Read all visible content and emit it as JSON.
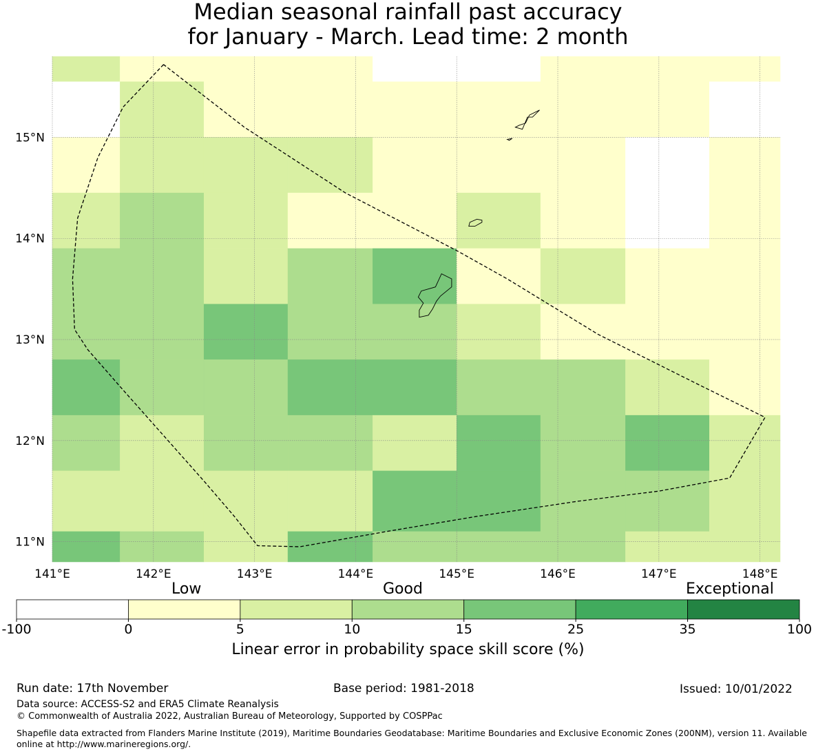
{
  "title_line1": "Median seasonal rainfall past accuracy",
  "title_line2": "for January - March. Lead time: 2 month",
  "map": {
    "lon_range": [
      141.0,
      148.2
    ],
    "lat_range": [
      10.8,
      15.8
    ],
    "x_ticks": [
      "141°E",
      "142°E",
      "143°E",
      "144°E",
      "145°E",
      "146°E",
      "147°E",
      "148°E"
    ],
    "y_ticks": [
      "15°N",
      "14°N",
      "13°N",
      "12°N",
      "11°N"
    ],
    "grid_note": "skill category index per cell: -1=no data, 0:-100..0, 1:0..5, 2:5..10, 3:10..15, 4:15..25",
    "cells": [
      {
        "lon": [
          141.0,
          141.67
        ],
        "lat": [
          15.55,
          15.8
        ],
        "cat": 2
      },
      {
        "lon": [
          141.67,
          142.5
        ],
        "lat": [
          15.55,
          15.8
        ],
        "cat": 1
      },
      {
        "lon": [
          142.5,
          143.33
        ],
        "lat": [
          15.55,
          15.8
        ],
        "cat": 1
      },
      {
        "lon": [
          143.33,
          144.17
        ],
        "lat": [
          15.55,
          15.8
        ],
        "cat": 1
      },
      {
        "lon": [
          144.17,
          145.0
        ],
        "lat": [
          15.55,
          15.8
        ],
        "cat": 0
      },
      {
        "lon": [
          145.0,
          145.83
        ],
        "lat": [
          15.55,
          15.8
        ],
        "cat": 0
      },
      {
        "lon": [
          145.83,
          146.67
        ],
        "lat": [
          15.55,
          15.8
        ],
        "cat": 1
      },
      {
        "lon": [
          146.67,
          147.5
        ],
        "lat": [
          15.55,
          15.8
        ],
        "cat": 1
      },
      {
        "lon": [
          147.5,
          148.2
        ],
        "lat": [
          15.55,
          15.8
        ],
        "cat": 1
      },
      {
        "lon": [
          141.0,
          141.67
        ],
        "lat": [
          15.0,
          15.55
        ],
        "cat": 0
      },
      {
        "lon": [
          141.67,
          142.5
        ],
        "lat": [
          15.0,
          15.55
        ],
        "cat": 2
      },
      {
        "lon": [
          142.5,
          143.33
        ],
        "lat": [
          15.0,
          15.55
        ],
        "cat": 1
      },
      {
        "lon": [
          143.33,
          144.17
        ],
        "lat": [
          15.0,
          15.55
        ],
        "cat": 1
      },
      {
        "lon": [
          144.17,
          145.0
        ],
        "lat": [
          15.0,
          15.55
        ],
        "cat": 1
      },
      {
        "lon": [
          145.0,
          145.83
        ],
        "lat": [
          15.0,
          15.55
        ],
        "cat": 1
      },
      {
        "lon": [
          145.83,
          146.67
        ],
        "lat": [
          15.0,
          15.55
        ],
        "cat": 1
      },
      {
        "lon": [
          146.67,
          147.5
        ],
        "lat": [
          15.0,
          15.55
        ],
        "cat": 1
      },
      {
        "lon": [
          147.5,
          148.2
        ],
        "lat": [
          15.0,
          15.55
        ],
        "cat": 0
      },
      {
        "lon": [
          141.0,
          141.67
        ],
        "lat": [
          14.45,
          15.0
        ],
        "cat": 1
      },
      {
        "lon": [
          141.67,
          142.5
        ],
        "lat": [
          14.45,
          15.0
        ],
        "cat": 2
      },
      {
        "lon": [
          142.5,
          143.33
        ],
        "lat": [
          14.45,
          15.0
        ],
        "cat": 2
      },
      {
        "lon": [
          143.33,
          144.17
        ],
        "lat": [
          14.45,
          15.0
        ],
        "cat": 2
      },
      {
        "lon": [
          144.17,
          145.0
        ],
        "lat": [
          14.45,
          15.0
        ],
        "cat": 1
      },
      {
        "lon": [
          145.0,
          145.83
        ],
        "lat": [
          14.45,
          15.0
        ],
        "cat": 1
      },
      {
        "lon": [
          145.83,
          146.67
        ],
        "lat": [
          14.45,
          15.0
        ],
        "cat": 1
      },
      {
        "lon": [
          146.67,
          147.5
        ],
        "lat": [
          14.45,
          15.0
        ],
        "cat": 0
      },
      {
        "lon": [
          147.5,
          148.2
        ],
        "lat": [
          14.45,
          15.0
        ],
        "cat": 1
      },
      {
        "lon": [
          141.0,
          141.67
        ],
        "lat": [
          13.9,
          14.45
        ],
        "cat": 2
      },
      {
        "lon": [
          141.67,
          142.5
        ],
        "lat": [
          13.9,
          14.45
        ],
        "cat": 3
      },
      {
        "lon": [
          142.5,
          143.33
        ],
        "lat": [
          13.9,
          14.45
        ],
        "cat": 2
      },
      {
        "lon": [
          143.33,
          144.17
        ],
        "lat": [
          13.9,
          14.45
        ],
        "cat": 1
      },
      {
        "lon": [
          144.17,
          145.0
        ],
        "lat": [
          13.9,
          14.45
        ],
        "cat": 1
      },
      {
        "lon": [
          145.0,
          145.83
        ],
        "lat": [
          13.9,
          14.45
        ],
        "cat": 2
      },
      {
        "lon": [
          145.83,
          146.67
        ],
        "lat": [
          13.9,
          14.45
        ],
        "cat": 1
      },
      {
        "lon": [
          146.67,
          147.5
        ],
        "lat": [
          13.9,
          14.45
        ],
        "cat": 0
      },
      {
        "lon": [
          147.5,
          148.2
        ],
        "lat": [
          13.9,
          14.45
        ],
        "cat": 1
      },
      {
        "lon": [
          141.0,
          141.67
        ],
        "lat": [
          13.35,
          13.9
        ],
        "cat": 3
      },
      {
        "lon": [
          141.67,
          142.5
        ],
        "lat": [
          13.35,
          13.9
        ],
        "cat": 3
      },
      {
        "lon": [
          142.5,
          143.33
        ],
        "lat": [
          13.35,
          13.9
        ],
        "cat": 2
      },
      {
        "lon": [
          143.33,
          144.17
        ],
        "lat": [
          13.35,
          13.9
        ],
        "cat": 3
      },
      {
        "lon": [
          144.17,
          145.0
        ],
        "lat": [
          13.35,
          13.9
        ],
        "cat": 4
      },
      {
        "lon": [
          145.0,
          145.83
        ],
        "lat": [
          13.35,
          13.9
        ],
        "cat": 1
      },
      {
        "lon": [
          145.83,
          146.67
        ],
        "lat": [
          13.35,
          13.9
        ],
        "cat": 2
      },
      {
        "lon": [
          146.67,
          147.5
        ],
        "lat": [
          13.35,
          13.9
        ],
        "cat": 1
      },
      {
        "lon": [
          147.5,
          148.2
        ],
        "lat": [
          13.35,
          13.9
        ],
        "cat": 1
      },
      {
        "lon": [
          141.0,
          141.67
        ],
        "lat": [
          12.8,
          13.35
        ],
        "cat": 3
      },
      {
        "lon": [
          141.67,
          142.5
        ],
        "lat": [
          12.8,
          13.35
        ],
        "cat": 3
      },
      {
        "lon": [
          142.5,
          143.33
        ],
        "lat": [
          12.8,
          13.35
        ],
        "cat": 4
      },
      {
        "lon": [
          143.33,
          144.17
        ],
        "lat": [
          12.8,
          13.35
        ],
        "cat": 3
      },
      {
        "lon": [
          144.17,
          145.0
        ],
        "lat": [
          12.8,
          13.35
        ],
        "cat": 3
      },
      {
        "lon": [
          145.0,
          145.83
        ],
        "lat": [
          12.8,
          13.35
        ],
        "cat": 2
      },
      {
        "lon": [
          145.83,
          146.67
        ],
        "lat": [
          12.8,
          13.35
        ],
        "cat": 1
      },
      {
        "lon": [
          146.67,
          147.5
        ],
        "lat": [
          12.8,
          13.35
        ],
        "cat": 1
      },
      {
        "lon": [
          147.5,
          148.2
        ],
        "lat": [
          12.8,
          13.35
        ],
        "cat": 1
      },
      {
        "lon": [
          141.0,
          141.67
        ],
        "lat": [
          12.25,
          12.8
        ],
        "cat": 4
      },
      {
        "lon": [
          141.67,
          142.5
        ],
        "lat": [
          12.25,
          12.8
        ],
        "cat": 3
      },
      {
        "lon": [
          142.5,
          143.33
        ],
        "lat": [
          12.25,
          12.8
        ],
        "cat": 3
      },
      {
        "lon": [
          143.33,
          144.17
        ],
        "lat": [
          12.25,
          12.8
        ],
        "cat": 4
      },
      {
        "lon": [
          144.17,
          145.0
        ],
        "lat": [
          12.25,
          12.8
        ],
        "cat": 4
      },
      {
        "lon": [
          145.0,
          145.83
        ],
        "lat": [
          12.25,
          12.8
        ],
        "cat": 3
      },
      {
        "lon": [
          145.83,
          146.67
        ],
        "lat": [
          12.25,
          12.8
        ],
        "cat": 3
      },
      {
        "lon": [
          146.67,
          147.5
        ],
        "lat": [
          12.25,
          12.8
        ],
        "cat": 2
      },
      {
        "lon": [
          147.5,
          148.2
        ],
        "lat": [
          12.25,
          12.8
        ],
        "cat": 1
      },
      {
        "lon": [
          141.0,
          141.67
        ],
        "lat": [
          11.7,
          12.25
        ],
        "cat": 3
      },
      {
        "lon": [
          141.67,
          142.5
        ],
        "lat": [
          11.7,
          12.25
        ],
        "cat": 2
      },
      {
        "lon": [
          142.5,
          143.33
        ],
        "lat": [
          11.7,
          12.25
        ],
        "cat": 3
      },
      {
        "lon": [
          143.33,
          144.17
        ],
        "lat": [
          11.7,
          12.25
        ],
        "cat": 3
      },
      {
        "lon": [
          144.17,
          145.0
        ],
        "lat": [
          11.7,
          12.25
        ],
        "cat": 2
      },
      {
        "lon": [
          145.0,
          145.83
        ],
        "lat": [
          11.7,
          12.25
        ],
        "cat": 4
      },
      {
        "lon": [
          145.83,
          146.67
        ],
        "lat": [
          11.7,
          12.25
        ],
        "cat": 3
      },
      {
        "lon": [
          146.67,
          147.5
        ],
        "lat": [
          11.7,
          12.25
        ],
        "cat": 4
      },
      {
        "lon": [
          147.5,
          148.2
        ],
        "lat": [
          11.7,
          12.25
        ],
        "cat": 2
      },
      {
        "lon": [
          141.0,
          141.67
        ],
        "lat": [
          11.1,
          11.7
        ],
        "cat": 2
      },
      {
        "lon": [
          141.67,
          142.5
        ],
        "lat": [
          11.1,
          11.7
        ],
        "cat": 2
      },
      {
        "lon": [
          142.5,
          143.33
        ],
        "lat": [
          11.1,
          11.7
        ],
        "cat": 2
      },
      {
        "lon": [
          143.33,
          144.17
        ],
        "lat": [
          11.1,
          11.7
        ],
        "cat": 2
      },
      {
        "lon": [
          144.17,
          145.0
        ],
        "lat": [
          11.1,
          11.7
        ],
        "cat": 4
      },
      {
        "lon": [
          145.0,
          145.83
        ],
        "lat": [
          11.1,
          11.7
        ],
        "cat": 4
      },
      {
        "lon": [
          145.83,
          146.67
        ],
        "lat": [
          11.1,
          11.7
        ],
        "cat": 3
      },
      {
        "lon": [
          146.67,
          147.5
        ],
        "lat": [
          11.1,
          11.7
        ],
        "cat": 3
      },
      {
        "lon": [
          147.5,
          148.2
        ],
        "lat": [
          11.1,
          11.7
        ],
        "cat": 2
      },
      {
        "lon": [
          141.0,
          141.67
        ],
        "lat": [
          10.8,
          11.1
        ],
        "cat": 4
      },
      {
        "lon": [
          141.67,
          142.5
        ],
        "lat": [
          10.8,
          11.1
        ],
        "cat": 3
      },
      {
        "lon": [
          142.5,
          143.33
        ],
        "lat": [
          10.8,
          11.1
        ],
        "cat": 2
      },
      {
        "lon": [
          143.33,
          144.17
        ],
        "lat": [
          10.8,
          11.1
        ],
        "cat": 4
      },
      {
        "lon": [
          144.17,
          145.0
        ],
        "lat": [
          10.8,
          11.1
        ],
        "cat": 3
      },
      {
        "lon": [
          145.0,
          145.83
        ],
        "lat": [
          10.8,
          11.1
        ],
        "cat": 3
      },
      {
        "lon": [
          145.83,
          146.67
        ],
        "lat": [
          10.8,
          11.1
        ],
        "cat": 3
      },
      {
        "lon": [
          146.67,
          147.5
        ],
        "lat": [
          10.8,
          11.1
        ],
        "cat": 2
      },
      {
        "lon": [
          147.5,
          148.2
        ],
        "lat": [
          10.8,
          11.1
        ],
        "cat": 2
      }
    ],
    "eez_boundary": [
      [
        142.1,
        15.72
      ],
      [
        141.7,
        15.3
      ],
      [
        141.45,
        14.8
      ],
      [
        141.25,
        14.2
      ],
      [
        141.2,
        13.6
      ],
      [
        141.22,
        13.1
      ],
      [
        141.35,
        12.9
      ],
      [
        141.7,
        12.5
      ],
      [
        142.1,
        12.05
      ],
      [
        142.5,
        11.6
      ],
      [
        142.8,
        11.25
      ],
      [
        143.03,
        10.96
      ],
      [
        143.45,
        10.95
      ],
      [
        144.3,
        11.1
      ],
      [
        145.2,
        11.25
      ],
      [
        146.2,
        11.4
      ],
      [
        147.0,
        11.5
      ],
      [
        147.7,
        11.63
      ],
      [
        148.05,
        12.23
      ],
      [
        147.4,
        12.55
      ],
      [
        146.4,
        13.05
      ],
      [
        145.5,
        13.6
      ],
      [
        145.0,
        13.88
      ],
      [
        143.9,
        14.45
      ],
      [
        142.9,
        15.1
      ],
      [
        142.1,
        15.72
      ]
    ],
    "islands": [
      [
        [
          144.63,
          13.22
        ],
        [
          144.72,
          13.24
        ],
        [
          144.76,
          13.3
        ],
        [
          144.8,
          13.38
        ],
        [
          144.84,
          13.43
        ],
        [
          144.95,
          13.52
        ],
        [
          144.95,
          13.6
        ],
        [
          144.85,
          13.65
        ],
        [
          144.79,
          13.52
        ],
        [
          144.65,
          13.48
        ],
        [
          144.62,
          13.42
        ],
        [
          144.67,
          13.36
        ],
        [
          144.63,
          13.29
        ],
        [
          144.63,
          13.22
        ]
      ],
      [
        [
          145.12,
          14.12
        ],
        [
          145.18,
          14.12
        ],
        [
          145.25,
          14.16
        ],
        [
          145.25,
          14.18
        ],
        [
          145.2,
          14.19
        ],
        [
          145.13,
          14.16
        ],
        [
          145.12,
          14.12
        ]
      ],
      [
        [
          145.58,
          15.1
        ],
        [
          145.65,
          15.08
        ],
        [
          145.7,
          15.2
        ],
        [
          145.75,
          15.2
        ],
        [
          145.82,
          15.27
        ],
        [
          145.72,
          15.22
        ],
        [
          145.68,
          15.14
        ],
        [
          145.62,
          15.12
        ],
        [
          145.58,
          15.1
        ]
      ],
      [
        [
          145.5,
          14.98
        ],
        [
          145.55,
          14.99
        ],
        [
          145.52,
          14.97
        ],
        [
          145.5,
          14.98
        ]
      ]
    ]
  },
  "colorbar": {
    "category_labels": [
      "Low",
      "Good",
      "Exceptional"
    ],
    "bounds": [
      "-100",
      "0",
      "5",
      "10",
      "15",
      "25",
      "35",
      "100"
    ],
    "colors": [
      "#ffffff",
      "#ffffcc",
      "#d9f0a3",
      "#addd8e",
      "#78c679",
      "#41ab5d",
      "#238443"
    ],
    "label": "Linear error in probability space skill score (%)"
  },
  "footer": {
    "run_date": "Run date: 17th November",
    "base_period": "Base period: 1981-2018",
    "issued": "Issued: 10/01/2022",
    "data_source": "Data source: ACCESS-S2 and ERA5 Climate Reanalysis",
    "copyright": "© Commonwealth of Australia 2022, Australian Bureau of Meteorology, Supported by COSPPac",
    "shapefile": "Shapefile data extracted from Flanders Marine Institute (2019), Maritime Boundaries Geodatabase: Maritime Boundaries and Exclusive Economic Zones (200NM), version 11. Available online at http://www.marineregions.org/."
  }
}
